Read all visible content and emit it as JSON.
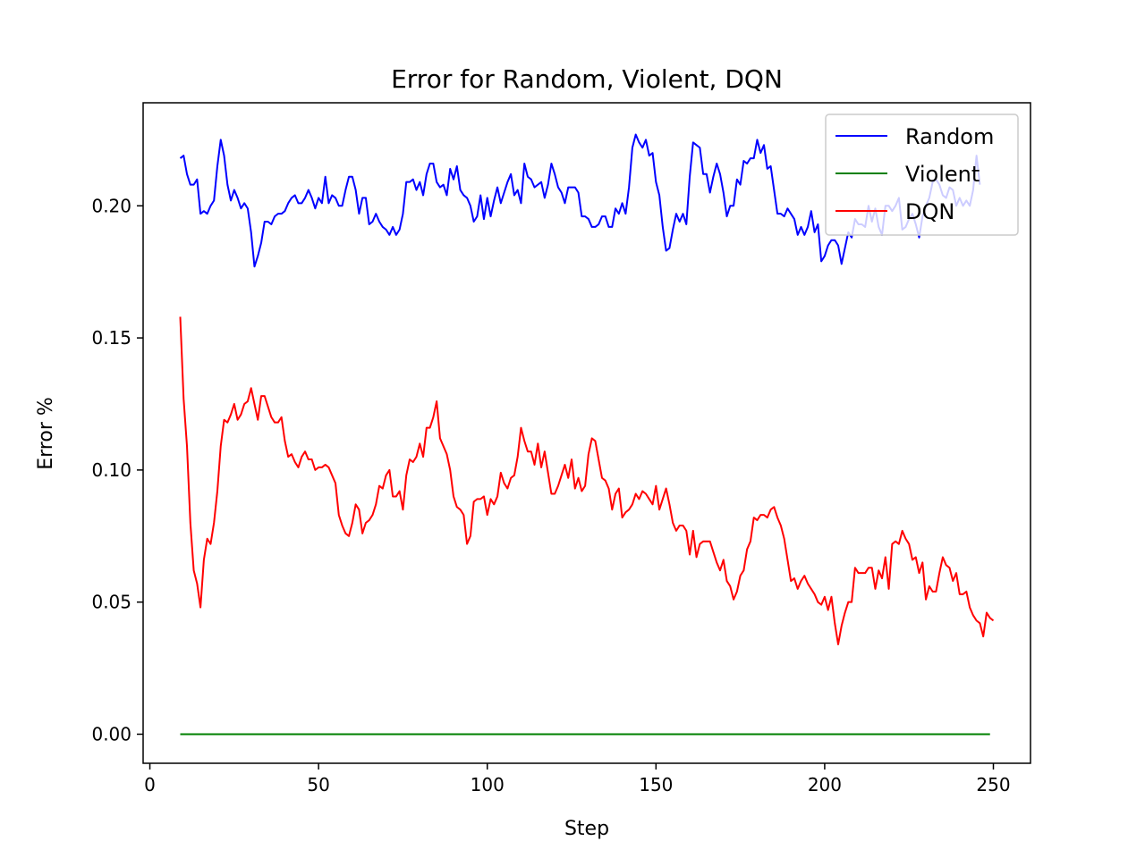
{
  "chart_data": {
    "type": "line",
    "title": "Error for Random, Violent, DQN",
    "xlabel": "Step",
    "ylabel": "Error %",
    "xlim": [
      -2,
      261
    ],
    "ylim": [
      -0.011,
      0.239
    ],
    "xticks": [
      0,
      50,
      100,
      150,
      200,
      250
    ],
    "yticks": [
      0.0,
      0.05,
      0.1,
      0.15,
      0.2
    ],
    "ytick_labels": [
      "0.00",
      "0.05",
      "0.10",
      "0.15",
      "0.20"
    ],
    "grid": false,
    "legend_position": "upper-right",
    "series": [
      {
        "name": "Random",
        "color": "#0000ff",
        "x_start": 9,
        "values": [
          0.218,
          0.219,
          0.212,
          0.208,
          0.208,
          0.21,
          0.197,
          0.198,
          0.197,
          0.2,
          0.202,
          0.215,
          0.225,
          0.219,
          0.208,
          0.202,
          0.206,
          0.203,
          0.199,
          0.201,
          0.199,
          0.19,
          0.177,
          0.181,
          0.186,
          0.194,
          0.194,
          0.193,
          0.196,
          0.197,
          0.197,
          0.198,
          0.201,
          0.203,
          0.204,
          0.201,
          0.201,
          0.203,
          0.206,
          0.203,
          0.199,
          0.203,
          0.201,
          0.211,
          0.201,
          0.204,
          0.203,
          0.2,
          0.2,
          0.206,
          0.211,
          0.211,
          0.206,
          0.197,
          0.203,
          0.203,
          0.193,
          0.194,
          0.197,
          0.194,
          0.192,
          0.191,
          0.189,
          0.192,
          0.189,
          0.191,
          0.197,
          0.209,
          0.209,
          0.21,
          0.206,
          0.209,
          0.204,
          0.212,
          0.216,
          0.216,
          0.209,
          0.207,
          0.208,
          0.204,
          0.214,
          0.21,
          0.215,
          0.206,
          0.204,
          0.203,
          0.2,
          0.194,
          0.196,
          0.204,
          0.195,
          0.203,
          0.196,
          0.202,
          0.207,
          0.201,
          0.205,
          0.209,
          0.212,
          0.204,
          0.206,
          0.201,
          0.216,
          0.211,
          0.21,
          0.207,
          0.208,
          0.209,
          0.203,
          0.208,
          0.216,
          0.212,
          0.207,
          0.205,
          0.201,
          0.207,
          0.207,
          0.207,
          0.205,
          0.196,
          0.196,
          0.195,
          0.192,
          0.192,
          0.193,
          0.196,
          0.196,
          0.192,
          0.192,
          0.199,
          0.197,
          0.201,
          0.197,
          0.207,
          0.222,
          0.227,
          0.224,
          0.222,
          0.225,
          0.219,
          0.22,
          0.209,
          0.204,
          0.192,
          0.183,
          0.184,
          0.191,
          0.197,
          0.194,
          0.197,
          0.193,
          0.211,
          0.224,
          0.223,
          0.222,
          0.212,
          0.212,
          0.205,
          0.211,
          0.216,
          0.212,
          0.205,
          0.196,
          0.2,
          0.2,
          0.21,
          0.208,
          0.217,
          0.216,
          0.218,
          0.218,
          0.225,
          0.22,
          0.223,
          0.214,
          0.215,
          0.206,
          0.197,
          0.197,
          0.196,
          0.199,
          0.197,
          0.195,
          0.189,
          0.192,
          0.189,
          0.192,
          0.198,
          0.19,
          0.193,
          0.179,
          0.181,
          0.185,
          0.187,
          0.187,
          0.185,
          0.178,
          0.184,
          0.19,
          0.188,
          0.195,
          0.193,
          0.193,
          0.192,
          0.2,
          0.194,
          0.199,
          0.192,
          0.189,
          0.2,
          0.2,
          0.198,
          0.2,
          0.203,
          0.191,
          0.192,
          0.195,
          0.197,
          0.193,
          0.188,
          0.196,
          0.2,
          0.203,
          0.209,
          0.21,
          0.208,
          0.204,
          0.203,
          0.207,
          0.206,
          0.2,
          0.203,
          0.2,
          0.202,
          0.2,
          0.206,
          0.219,
          0.208
        ]
      },
      {
        "name": "Violent",
        "color": "#008000",
        "x_start": 9,
        "values": [
          0,
          0,
          0,
          0,
          0,
          0,
          0,
          0,
          0,
          0,
          0,
          0,
          0,
          0,
          0,
          0,
          0,
          0,
          0,
          0,
          0,
          0,
          0,
          0,
          0,
          0,
          0,
          0,
          0,
          0,
          0,
          0,
          0,
          0,
          0,
          0,
          0,
          0,
          0,
          0,
          0,
          0,
          0,
          0,
          0,
          0,
          0,
          0,
          0,
          0,
          0,
          0,
          0,
          0,
          0,
          0,
          0,
          0,
          0,
          0,
          0,
          0,
          0,
          0,
          0,
          0,
          0,
          0,
          0,
          0,
          0,
          0,
          0,
          0,
          0,
          0,
          0,
          0,
          0,
          0,
          0,
          0,
          0,
          0,
          0,
          0,
          0,
          0,
          0,
          0,
          0,
          0,
          0,
          0,
          0,
          0,
          0,
          0,
          0,
          0,
          0,
          0,
          0,
          0,
          0,
          0,
          0,
          0,
          0,
          0,
          0,
          0,
          0,
          0,
          0,
          0,
          0,
          0,
          0,
          0,
          0,
          0,
          0,
          0,
          0,
          0,
          0,
          0,
          0,
          0,
          0,
          0,
          0,
          0,
          0,
          0,
          0,
          0,
          0,
          0,
          0,
          0,
          0,
          0,
          0,
          0,
          0,
          0,
          0,
          0,
          0,
          0,
          0,
          0,
          0,
          0,
          0,
          0,
          0,
          0,
          0,
          0,
          0,
          0,
          0,
          0,
          0,
          0,
          0,
          0,
          0,
          0,
          0,
          0,
          0,
          0,
          0,
          0,
          0,
          0,
          0,
          0,
          0,
          0,
          0,
          0,
          0,
          0,
          0,
          0,
          0,
          0,
          0,
          0,
          0,
          0,
          0,
          0,
          0,
          0,
          0,
          0,
          0,
          0,
          0,
          0,
          0,
          0,
          0,
          0,
          0,
          0,
          0,
          0,
          0,
          0,
          0,
          0,
          0,
          0,
          0,
          0,
          0,
          0,
          0,
          0,
          0,
          0,
          0,
          0,
          0,
          0,
          0,
          0,
          0,
          0,
          0,
          0,
          0,
          0,
          0
        ]
      },
      {
        "name": "DQN",
        "color": "#ff0000",
        "x_start": 9,
        "values": [
          0.158,
          0.127,
          0.109,
          0.08,
          0.062,
          0.057,
          0.048,
          0.066,
          0.074,
          0.072,
          0.08,
          0.092,
          0.109,
          0.119,
          0.118,
          0.121,
          0.125,
          0.119,
          0.121,
          0.125,
          0.126,
          0.131,
          0.125,
          0.119,
          0.128,
          0.128,
          0.124,
          0.12,
          0.118,
          0.118,
          0.12,
          0.111,
          0.105,
          0.106,
          0.103,
          0.101,
          0.105,
          0.107,
          0.104,
          0.104,
          0.1,
          0.101,
          0.101,
          0.102,
          0.101,
          0.098,
          0.095,
          0.083,
          0.079,
          0.076,
          0.075,
          0.08,
          0.087,
          0.085,
          0.076,
          0.08,
          0.081,
          0.083,
          0.087,
          0.094,
          0.093,
          0.098,
          0.1,
          0.09,
          0.09,
          0.092,
          0.085,
          0.098,
          0.104,
          0.103,
          0.105,
          0.11,
          0.105,
          0.116,
          0.116,
          0.12,
          0.126,
          0.112,
          0.109,
          0.106,
          0.1,
          0.09,
          0.086,
          0.085,
          0.083,
          0.072,
          0.075,
          0.088,
          0.089,
          0.089,
          0.09,
          0.083,
          0.089,
          0.087,
          0.09,
          0.099,
          0.095,
          0.093,
          0.097,
          0.098,
          0.105,
          0.116,
          0.111,
          0.107,
          0.107,
          0.102,
          0.11,
          0.101,
          0.107,
          0.099,
          0.091,
          0.091,
          0.094,
          0.098,
          0.102,
          0.097,
          0.104,
          0.093,
          0.097,
          0.092,
          0.094,
          0.106,
          0.112,
          0.111,
          0.104,
          0.097,
          0.096,
          0.093,
          0.085,
          0.091,
          0.093,
          0.082,
          0.084,
          0.085,
          0.087,
          0.091,
          0.089,
          0.092,
          0.091,
          0.089,
          0.087,
          0.094,
          0.085,
          0.089,
          0.093,
          0.087,
          0.08,
          0.077,
          0.079,
          0.079,
          0.077,
          0.068,
          0.077,
          0.067,
          0.072,
          0.073,
          0.073,
          0.073,
          0.069,
          0.065,
          0.062,
          0.066,
          0.058,
          0.056,
          0.051,
          0.054,
          0.06,
          0.062,
          0.07,
          0.073,
          0.082,
          0.081,
          0.083,
          0.083,
          0.082,
          0.085,
          0.086,
          0.082,
          0.079,
          0.074,
          0.066,
          0.058,
          0.059,
          0.055,
          0.058,
          0.06,
          0.057,
          0.055,
          0.053,
          0.05,
          0.049,
          0.052,
          0.047,
          0.052,
          0.042,
          0.034,
          0.041,
          0.046,
          0.05,
          0.05,
          0.063,
          0.061,
          0.061,
          0.061,
          0.063,
          0.063,
          0.055,
          0.062,
          0.059,
          0.067,
          0.055,
          0.072,
          0.073,
          0.072,
          0.077,
          0.074,
          0.072,
          0.066,
          0.067,
          0.061,
          0.065,
          0.051,
          0.056,
          0.054,
          0.054,
          0.061,
          0.067,
          0.064,
          0.063,
          0.058,
          0.061,
          0.053,
          0.053,
          0.054,
          0.048,
          0.045,
          0.043,
          0.042,
          0.037,
          0.046,
          0.044,
          0.043
        ]
      }
    ]
  }
}
